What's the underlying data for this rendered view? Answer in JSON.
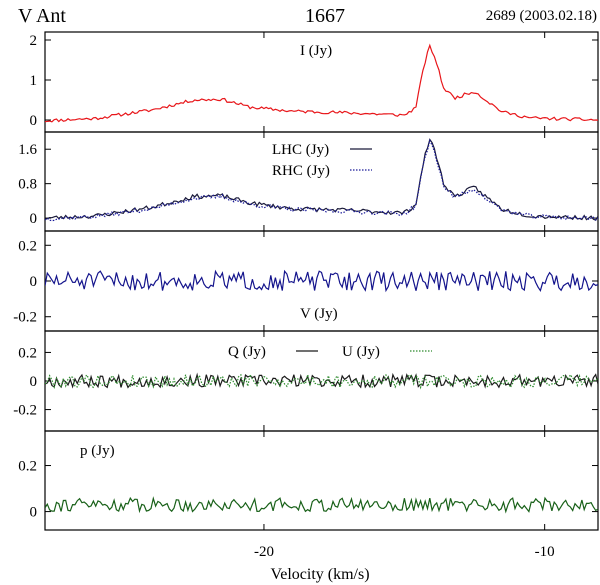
{
  "header": {
    "source": "V Ant",
    "transition": "1667",
    "epoch": "2689 (2003.02.18)"
  },
  "colors": {
    "stokes_i": "#e8161a",
    "lhc": "#1a1a3a",
    "rhc": "#1a1a99",
    "stokes_v": "#14148c",
    "stokes_q": "#1a1a1a",
    "stokes_u": "#2e8b2e",
    "p": "#186018"
  },
  "chart_data": {
    "type": "line",
    "xlabel": "Velocity (km/s)",
    "xlim": [
      -27.8,
      -8.1
    ],
    "x_ticks": [
      -20,
      -10
    ],
    "x_tick_labels": [
      "-20",
      "-10"
    ],
    "panels": [
      {
        "id": "I",
        "ylim": [
          -0.3,
          2.2
        ],
        "y_ticks": [
          0,
          1,
          2
        ],
        "y_tick_labels": [
          "0",
          "1",
          "2"
        ],
        "series": [
          {
            "name": "I (Jy)",
            "style": "solid",
            "color_key": "stokes_i",
            "seed": 11,
            "noise": 0.04,
            "baseline": [
              [
                -27.8,
                -0.02
              ],
              [
                -26,
                0.04
              ],
              [
                -24,
                0.25
              ],
              [
                -22.5,
                0.5
              ],
              [
                -21.5,
                0.52
              ],
              [
                -20.5,
                0.32
              ],
              [
                -19,
                0.22
              ],
              [
                -17,
                0.18
              ],
              [
                -15,
                0.12
              ],
              [
                -14.6,
                0.3
              ],
              [
                -14.3,
                1.35
              ],
              [
                -14.1,
                1.85
              ],
              [
                -13.9,
                1.55
              ],
              [
                -13.6,
                0.8
              ],
              [
                -13.2,
                0.55
              ],
              [
                -12.5,
                0.72
              ],
              [
                -12.1,
                0.5
              ],
              [
                -11.5,
                0.2
              ],
              [
                -10.5,
                0.05
              ],
              [
                -8.1,
                0.0
              ]
            ]
          }
        ],
        "legend": [
          {
            "label": "I (Jy)",
            "style": "none"
          }
        ]
      },
      {
        "id": "LHC_RHC",
        "ylim": [
          -0.3,
          2.0
        ],
        "y_ticks": [
          0,
          0.8,
          1.6
        ],
        "y_tick_labels": [
          "0",
          "0.8",
          "1.6"
        ],
        "series": [
          {
            "name": "LHC (Jy)",
            "style": "solid",
            "color_key": "lhc",
            "seed": 23,
            "noise": 0.05,
            "baseline": [
              [
                -27.8,
                0.0
              ],
              [
                -26,
                0.05
              ],
              [
                -24,
                0.25
              ],
              [
                -22.5,
                0.5
              ],
              [
                -21.5,
                0.52
              ],
              [
                -20.5,
                0.35
              ],
              [
                -19,
                0.22
              ],
              [
                -17,
                0.18
              ],
              [
                -15,
                0.12
              ],
              [
                -14.6,
                0.3
              ],
              [
                -14.3,
                1.35
              ],
              [
                -14.1,
                1.85
              ],
              [
                -13.9,
                1.55
              ],
              [
                -13.6,
                0.8
              ],
              [
                -13.2,
                0.5
              ],
              [
                -12.5,
                0.72
              ],
              [
                -12.1,
                0.5
              ],
              [
                -11.5,
                0.2
              ],
              [
                -10.5,
                0.05
              ],
              [
                -8.1,
                0.0
              ]
            ]
          },
          {
            "name": "RHC (Jy)",
            "style": "dotted",
            "color_key": "rhc",
            "seed": 37,
            "noise": 0.05,
            "baseline": [
              [
                -27.8,
                -0.02
              ],
              [
                -26,
                0.04
              ],
              [
                -24,
                0.22
              ],
              [
                -22.5,
                0.46
              ],
              [
                -21.5,
                0.5
              ],
              [
                -20.5,
                0.32
              ],
              [
                -19,
                0.2
              ],
              [
                -17,
                0.16
              ],
              [
                -15,
                0.1
              ],
              [
                -14.6,
                0.28
              ],
              [
                -14.3,
                1.3
              ],
              [
                -14.1,
                1.8
              ],
              [
                -13.9,
                1.5
              ],
              [
                -13.6,
                0.75
              ],
              [
                -13.2,
                0.48
              ],
              [
                -12.5,
                0.68
              ],
              [
                -12.1,
                0.45
              ],
              [
                -11.5,
                0.18
              ],
              [
                -10.5,
                0.04
              ],
              [
                -8.1,
                -0.01
              ]
            ]
          }
        ],
        "legend": [
          {
            "label": "LHC (Jy)",
            "style": "solid"
          },
          {
            "label": "RHC (Jy)",
            "style": "dotted"
          }
        ]
      },
      {
        "id": "V",
        "ylim": [
          -0.28,
          0.28
        ],
        "y_ticks": [
          -0.2,
          0,
          0.2
        ],
        "y_tick_labels": [
          "-0.2",
          "0",
          "0.2"
        ],
        "series": [
          {
            "name": "V (Jy)",
            "style": "solid",
            "color_key": "stokes_v",
            "seed": 51,
            "noise": 0.055,
            "baseline": [
              [
                -27.8,
                0.0
              ],
              [
                -8.1,
                0.0
              ]
            ]
          }
        ],
        "legend": [
          {
            "label": "V (Jy)",
            "style": "none"
          }
        ]
      },
      {
        "id": "QU",
        "ylim": [
          -0.35,
          0.35
        ],
        "y_ticks": [
          -0.2,
          0,
          0.2
        ],
        "y_tick_labels": [
          "-0.2",
          "0",
          "0.2"
        ],
        "series": [
          {
            "name": "Q (Jy)",
            "style": "solid",
            "color_key": "stokes_q",
            "seed": 67,
            "noise": 0.045,
            "baseline": [
              [
                -27.8,
                0.0
              ],
              [
                -8.1,
                0.0
              ]
            ]
          },
          {
            "name": "U (Jy)",
            "style": "dotted",
            "color_key": "stokes_u",
            "seed": 79,
            "noise": 0.045,
            "baseline": [
              [
                -27.8,
                0.0
              ],
              [
                -8.1,
                0.0
              ]
            ]
          }
        ],
        "legend": [
          {
            "label": "Q (Jy)",
            "style": "solid"
          },
          {
            "label": "U (Jy)",
            "style": "dotted"
          }
        ]
      },
      {
        "id": "p",
        "ylim": [
          -0.08,
          0.35
        ],
        "y_ticks": [
          0,
          0.2
        ],
        "y_tick_labels": [
          "0",
          "0.2"
        ],
        "series": [
          {
            "name": "p (Jy)",
            "style": "solid",
            "color_key": "p",
            "seed": 91,
            "noise": 0.03,
            "baseline": [
              [
                -27.8,
                0.03
              ],
              [
                -8.1,
                0.03
              ]
            ]
          }
        ],
        "legend": [
          {
            "label": "p (Jy)",
            "style": "none"
          }
        ]
      }
    ]
  }
}
